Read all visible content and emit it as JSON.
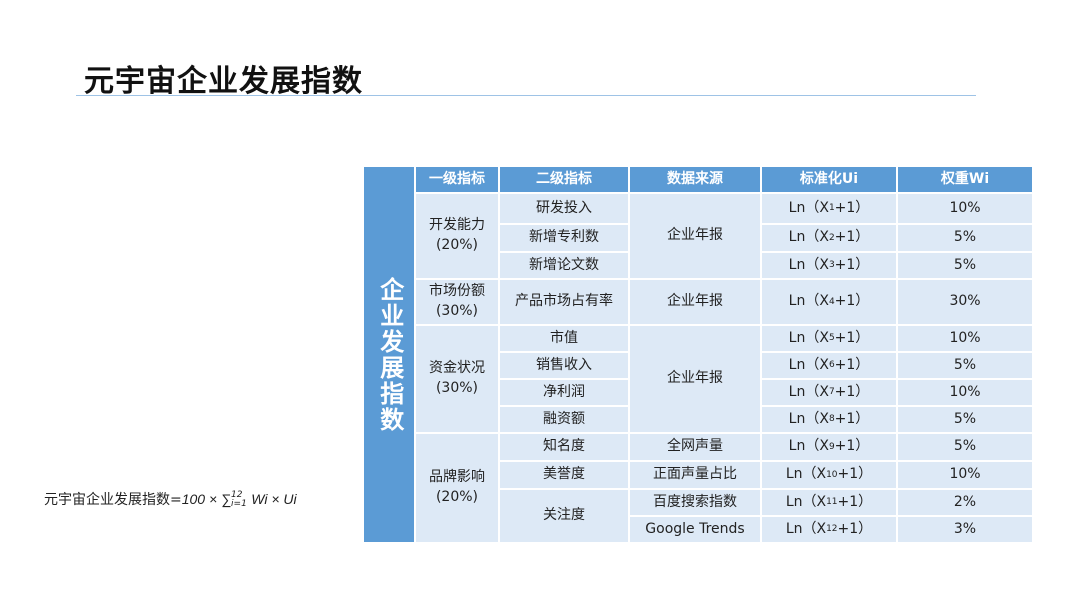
{
  "title": "元宇宙企业发展指数",
  "formula": {
    "lhs": "元宇宙企业发展指数=",
    "rhs": "100 × ∑",
    "upper": "12",
    "lower": "i=1",
    "tail": "Wi × Ui"
  },
  "table": {
    "side_label": "企业发展指数",
    "headers": [
      "一级指标",
      "二级指标",
      "数据来源",
      "标准化Ui",
      "权重Wi"
    ],
    "groups": [
      {
        "name": "开发能力",
        "weight": "(20%)"
      },
      {
        "name": "市场份额",
        "weight": "(30%)"
      },
      {
        "name": "资金状况",
        "weight": "(30%)"
      },
      {
        "name": "品牌影响",
        "weight": "(20%)"
      }
    ],
    "sources": [
      "企业年报",
      "企业年报",
      "企业年报",
      "全网声量",
      "正面声量占比",
      "百度搜索指数",
      "Google Trends"
    ],
    "rows": [
      {
        "indicator": "研发投入",
        "ui_sub": "1",
        "weight": "10%"
      },
      {
        "indicator": "新增专利数",
        "ui_sub": "2",
        "weight": "5%"
      },
      {
        "indicator": "新增论文数",
        "ui_sub": "3",
        "weight": "5%"
      },
      {
        "indicator": "产品市场占有率",
        "ui_sub": "4",
        "weight": "30%"
      },
      {
        "indicator": "市值",
        "ui_sub": "5",
        "weight": "10%"
      },
      {
        "indicator": "销售收入",
        "ui_sub": "6",
        "weight": "5%"
      },
      {
        "indicator": "净利润",
        "ui_sub": "7",
        "weight": "10%"
      },
      {
        "indicator": "融资额",
        "ui_sub": "8",
        "weight": "5%"
      },
      {
        "indicator": "知名度",
        "ui_sub": "9",
        "weight": "5%"
      },
      {
        "indicator": "美誉度",
        "ui_sub": "10",
        "weight": "10%"
      },
      {
        "indicator": "关注度",
        "ui_sub": "11",
        "weight": "2%"
      },
      {
        "indicator": "",
        "ui_sub": "12",
        "weight": "3%"
      }
    ],
    "ui_prefix": "Ln（X",
    "ui_suffix": "+1）"
  },
  "colors": {
    "header": "#5b9bd5",
    "cell": "#dde9f6",
    "rule": "#9ec3e6"
  }
}
